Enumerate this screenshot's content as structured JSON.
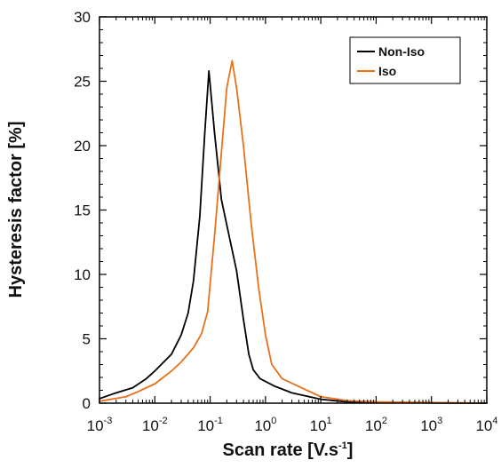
{
  "chart_data": {
    "type": "line",
    "xlabel": {
      "main": "Scan rate [V.s",
      "sup": "-1",
      "end": "]"
    },
    "ylabel": "Hysteresis factor [%]",
    "xscale": "log",
    "xlim": [
      0.001,
      10000
    ],
    "ylim": [
      0,
      30
    ],
    "xticks": [
      {
        "base": "10",
        "exp": "-3"
      },
      {
        "base": "10",
        "exp": "-2"
      },
      {
        "base": "10",
        "exp": "-1"
      },
      {
        "base": "10",
        "exp": "0"
      },
      {
        "base": "10",
        "exp": "1"
      },
      {
        "base": "10",
        "exp": "2"
      },
      {
        "base": "10",
        "exp": "3"
      },
      {
        "base": "10",
        "exp": "4"
      }
    ],
    "yticks": [
      "0",
      "5",
      "10",
      "15",
      "20",
      "25",
      "30"
    ],
    "grid": false,
    "legend_position": "top-right",
    "series": [
      {
        "name": "Non-Iso",
        "color": "#000000",
        "points": [
          [
            0.001,
            0.35
          ],
          [
            0.002,
            0.8
          ],
          [
            0.004,
            1.2
          ],
          [
            0.007,
            1.9
          ],
          [
            0.01,
            2.5
          ],
          [
            0.02,
            3.8
          ],
          [
            0.03,
            5.3
          ],
          [
            0.04,
            7.0
          ],
          [
            0.05,
            9.5
          ],
          [
            0.065,
            14.5
          ],
          [
            0.08,
            21.0
          ],
          [
            0.095,
            25.8
          ],
          [
            0.12,
            21.0
          ],
          [
            0.16,
            15.8
          ],
          [
            0.22,
            13.0
          ],
          [
            0.3,
            10.3
          ],
          [
            0.4,
            6.5
          ],
          [
            0.5,
            3.8
          ],
          [
            0.6,
            2.6
          ],
          [
            0.8,
            1.9
          ],
          [
            1.5,
            1.3
          ],
          [
            3,
            0.8
          ],
          [
            10,
            0.3
          ],
          [
            30,
            0.1
          ],
          [
            100,
            0.05
          ],
          [
            1000,
            0.02
          ],
          [
            10000,
            0.0
          ]
        ]
      },
      {
        "name": "Iso",
        "color": "#e8711c",
        "points": [
          [
            0.001,
            0.15
          ],
          [
            0.003,
            0.5
          ],
          [
            0.005,
            0.9
          ],
          [
            0.01,
            1.5
          ],
          [
            0.02,
            2.5
          ],
          [
            0.03,
            3.2
          ],
          [
            0.05,
            4.3
          ],
          [
            0.07,
            5.4
          ],
          [
            0.09,
            7.1
          ],
          [
            0.12,
            13.0
          ],
          [
            0.16,
            19.5
          ],
          [
            0.2,
            24.5
          ],
          [
            0.25,
            26.6
          ],
          [
            0.3,
            24.5
          ],
          [
            0.4,
            20.0
          ],
          [
            0.55,
            14.0
          ],
          [
            0.75,
            9.0
          ],
          [
            1.0,
            5.3
          ],
          [
            1.3,
            3.0
          ],
          [
            2.0,
            1.9
          ],
          [
            3.0,
            1.55
          ],
          [
            5.0,
            1.1
          ],
          [
            10.0,
            0.5
          ],
          [
            30.0,
            0.2
          ],
          [
            100.0,
            0.1
          ],
          [
            1000.0,
            0.05
          ],
          [
            10000.0,
            0.0
          ]
        ]
      }
    ]
  }
}
